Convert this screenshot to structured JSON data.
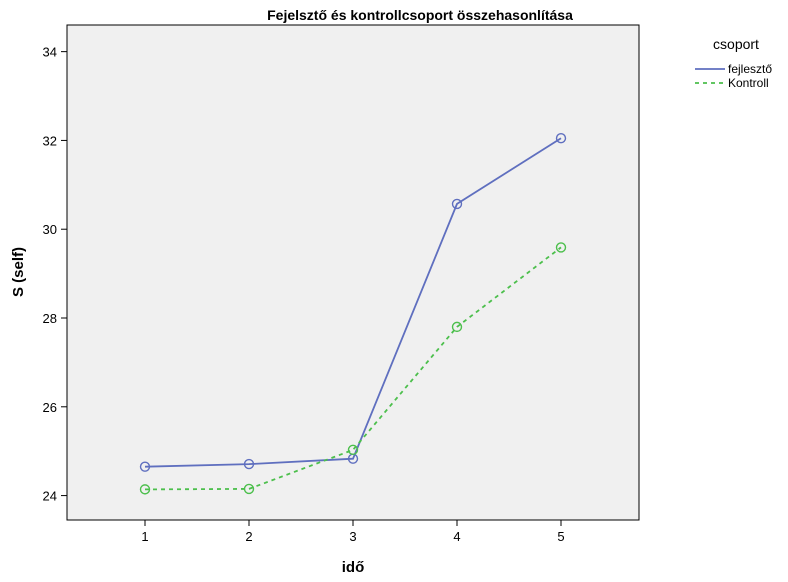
{
  "chart_data": {
    "type": "line",
    "title": "Fejelsztő és kontrollcsoport összehasonlítása",
    "xlabel": "idő",
    "ylabel": "S (self)",
    "x": [
      1,
      2,
      3,
      4,
      5
    ],
    "xlim": [
      0.25,
      5.75
    ],
    "ylim": [
      23.45,
      34.6
    ],
    "yticks": [
      24,
      26,
      28,
      30,
      32,
      34
    ],
    "xticks": [
      1,
      2,
      3,
      4,
      5
    ],
    "grid": false,
    "legend_title": "csoport",
    "legend_position": "top-right, outside plot",
    "plot_background": "#f0f0f0",
    "series": [
      {
        "name": "fejlesztő",
        "values": [
          24.65,
          24.71,
          24.83,
          30.57,
          32.05
        ],
        "color": "#5f6fbf",
        "line_style": "solid",
        "marker": "open-circle"
      },
      {
        "name": "Kontroll",
        "values": [
          24.14,
          24.15,
          25.03,
          27.8,
          29.59
        ],
        "color": "#4cbf4c",
        "line_style": "dashed",
        "marker": "open-circle"
      }
    ]
  }
}
